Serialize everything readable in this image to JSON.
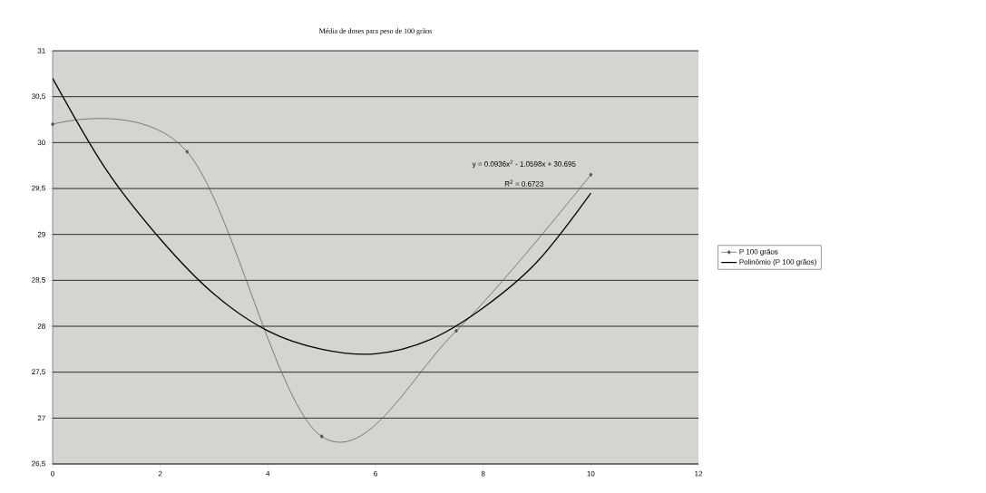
{
  "chart_data": {
    "type": "line",
    "title": "Média de doses para peso de 100 grãos",
    "series": [
      {
        "name": "P 100 grãos",
        "color": "#505050",
        "x": [
          0,
          2.5,
          5,
          7.5,
          10
        ],
        "values": [
          30.2,
          29.9,
          26.8,
          27.95,
          29.65
        ],
        "marker": "diamond"
      },
      {
        "name": "Polinômio (P 100 grãos)",
        "color": "#000000",
        "type": "line",
        "x": [
          0,
          1,
          2,
          3,
          4,
          5,
          6,
          7,
          8,
          9,
          10
        ],
        "values": [
          30.7,
          29.7,
          28.95,
          28.35,
          27.95,
          27.75,
          27.7,
          27.85,
          28.2,
          28.7,
          29.45
        ],
        "marker": "none"
      }
    ],
    "xlim": [
      0,
      12
    ],
    "xticks": [
      0,
      2,
      4,
      6,
      8,
      10,
      12
    ],
    "ylim": [
      26.5,
      31
    ],
    "yticks": [
      {
        "value": 26.5,
        "label": "26,5"
      },
      27,
      {
        "value": 27.5,
        "label": "27,5"
      },
      28,
      {
        "value": 28.5,
        "label": "28,5"
      },
      29,
      {
        "value": 29.5,
        "label": "29,5"
      },
      30,
      {
        "value": 30.5,
        "label": "30,5"
      },
      31
    ],
    "grid": "y",
    "legend": "right",
    "annotations": [
      "y = 0.0936x$^{2}$ - 1.0598x + 30.695",
      "R$^{2}$ = 0.6723"
    ]
  }
}
